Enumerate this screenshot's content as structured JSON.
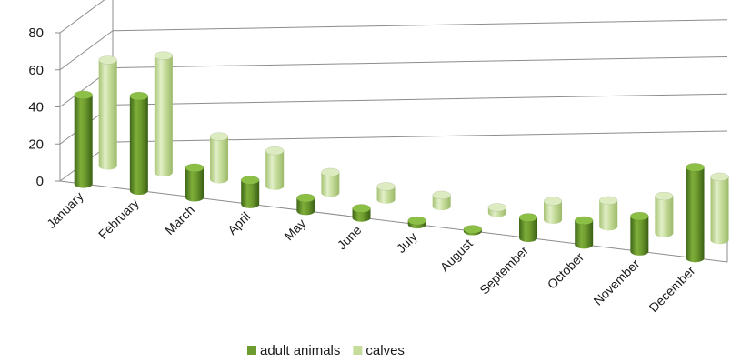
{
  "chart_data": {
    "type": "bar",
    "style": "3d-cylinder",
    "categories": [
      "January",
      "February",
      "March",
      "April",
      "May",
      "June",
      "July",
      "August",
      "September",
      "October",
      "November",
      "December"
    ],
    "series": [
      {
        "name": "adult animals",
        "color": "#6e9b2e",
        "values": [
          48,
          51,
          16,
          13,
          7,
          5,
          2,
          1,
          11,
          13,
          19,
          49
        ]
      },
      {
        "name": "calves",
        "color": "#c5dc9a",
        "values": [
          57,
          63,
          23,
          19,
          11,
          7,
          6,
          3,
          10,
          14,
          20,
          34
        ]
      }
    ],
    "yticks": [
      "0",
      "20",
      "40",
      "60",
      "80"
    ],
    "ylim": [
      0,
      80
    ],
    "grid": true,
    "legend_position": "bottom"
  }
}
